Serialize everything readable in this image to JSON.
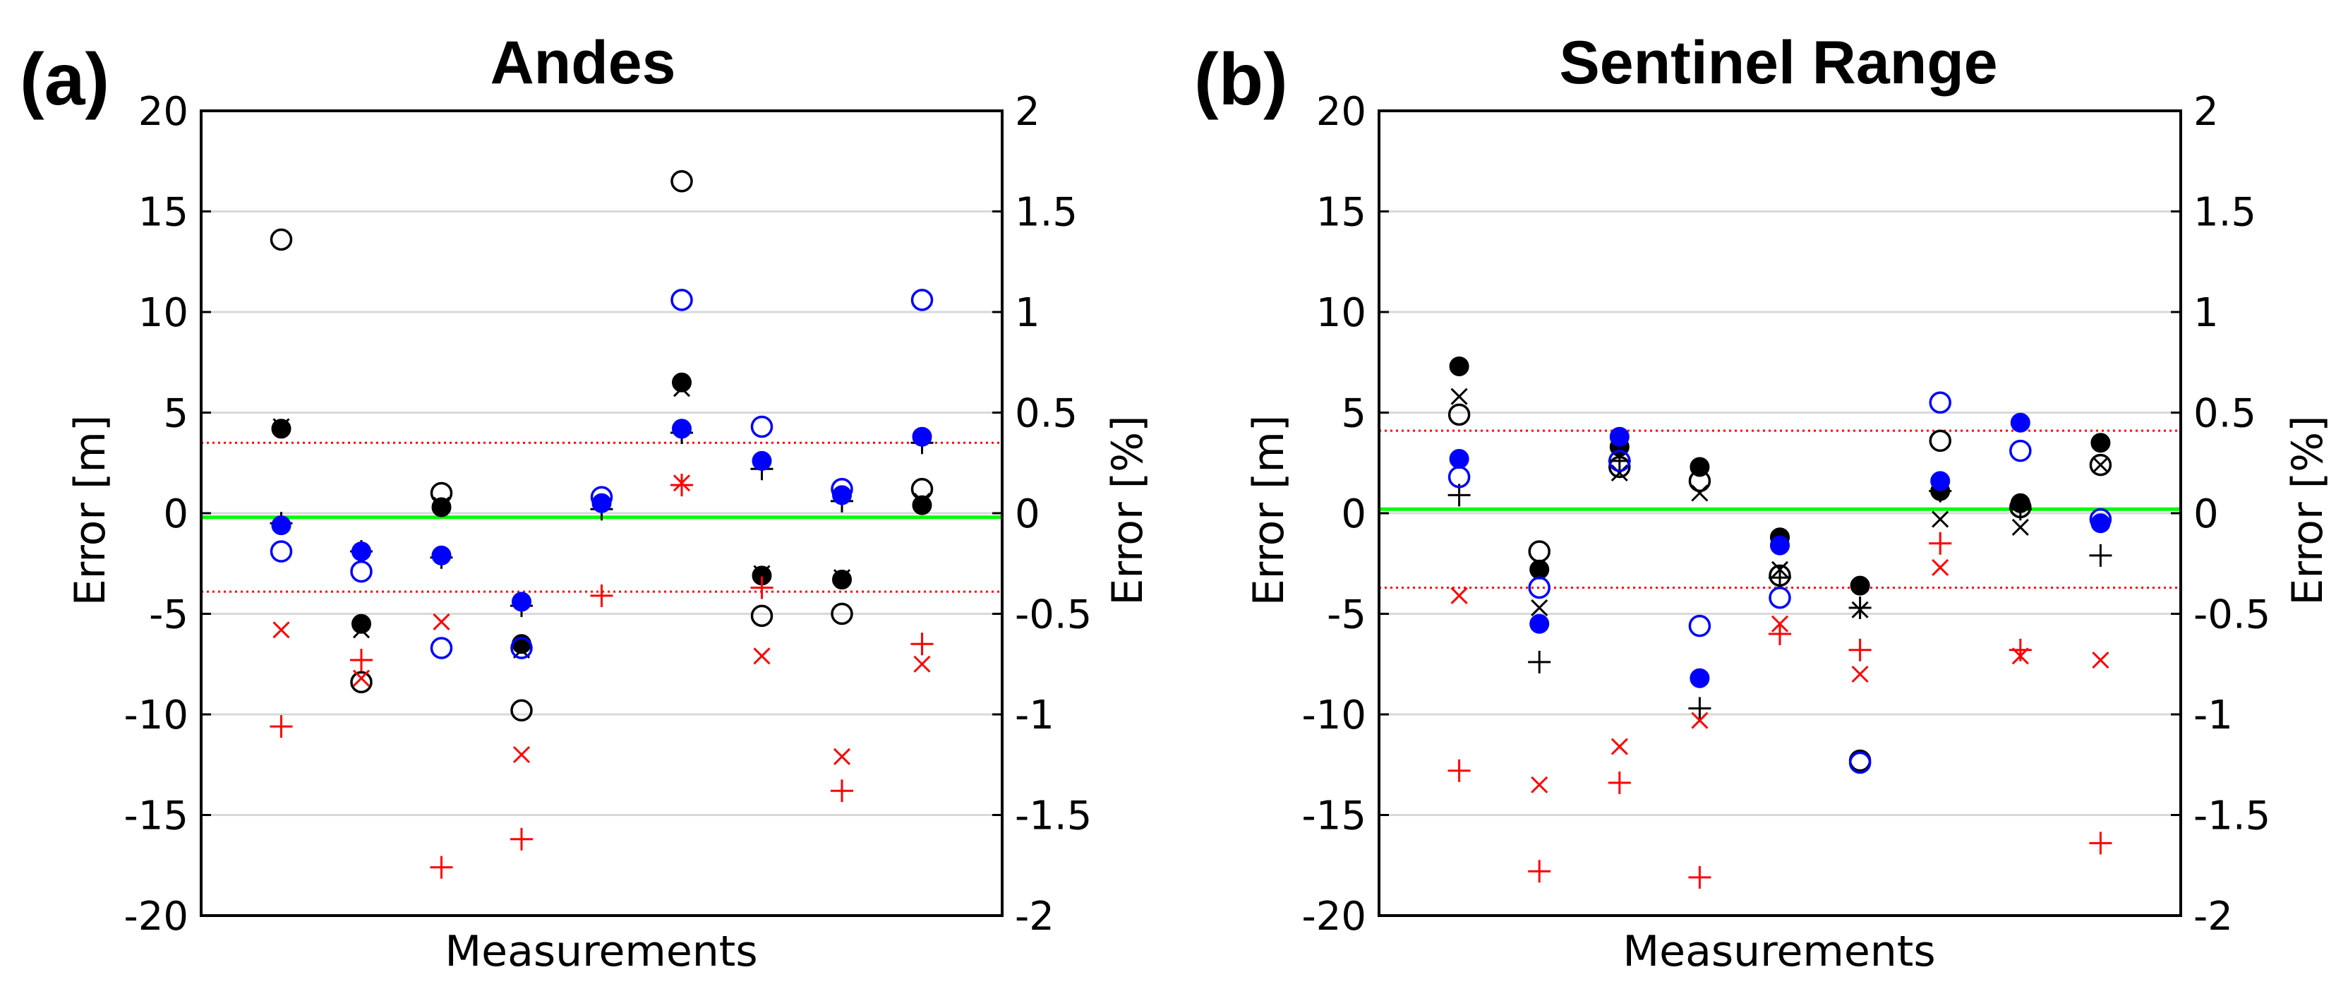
{
  "chart_data": [
    {
      "panel_label": "(a)",
      "title": "Andes",
      "type": "scatter",
      "xlabel": "Measurements",
      "ylabel": "Error [m]",
      "ylabel_right": "Error [%]",
      "ylim": [
        -20,
        20
      ],
      "ylim_right": [
        -2,
        2
      ],
      "yticks": [
        "20",
        "15",
        "10",
        "5",
        "0",
        "-5",
        "-10",
        "-15",
        "-20"
      ],
      "yticks_right": [
        "2",
        "1.5",
        "1",
        "0.5",
        "0",
        "-0.5",
        "-1",
        "-1.5",
        "-2"
      ],
      "grid": true,
      "colors": {
        "red": "#ff0000",
        "blue": "#0000ff",
        "black": "#000000",
        "green": "#00ff00"
      },
      "reference_lines": [
        {
          "name": "zero_line",
          "y": -0.2,
          "color": "green"
        },
        {
          "name": "upper_bound",
          "y": 3.5,
          "color": "red"
        },
        {
          "name": "lower_bound",
          "y": -3.9,
          "color": "red"
        }
      ],
      "series": [
        {
          "name": "black_filled_circle",
          "marker": "filled-circle",
          "color": "black",
          "points": [
            [
              1,
              4.2
            ],
            [
              2,
              -5.5
            ],
            [
              3,
              0.3
            ],
            [
              4,
              -6.5
            ],
            [
              6,
              6.5
            ],
            [
              7,
              -3.1
            ],
            [
              8,
              -3.3
            ],
            [
              9,
              0.4
            ]
          ]
        },
        {
          "name": "black_open_circle",
          "marker": "open-circle",
          "color": "black",
          "points": [
            [
              1,
              13.6
            ],
            [
              2,
              -8.4
            ],
            [
              3,
              1.0
            ],
            [
              4,
              -9.8
            ],
            [
              6,
              16.5
            ],
            [
              7,
              -5.1
            ],
            [
              8,
              -5.0
            ],
            [
              9,
              1.2
            ]
          ]
        },
        {
          "name": "black_cross",
          "marker": "x",
          "color": "black",
          "points": [
            [
              1,
              4.3
            ],
            [
              2,
              -5.8
            ],
            [
              3,
              0.4
            ],
            [
              4,
              -6.8
            ],
            [
              6,
              6.2
            ],
            [
              7,
              -3.0
            ],
            [
              8,
              -3.2
            ],
            [
              9,
              0.6
            ]
          ]
        },
        {
          "name": "black_plus",
          "marker": "plus",
          "color": "black",
          "points": [
            [
              1,
              -0.5
            ],
            [
              2,
              -1.9
            ],
            [
              3,
              -2.2
            ],
            [
              4,
              -4.6
            ],
            [
              5,
              0.2
            ],
            [
              6,
              4.0
            ],
            [
              7,
              2.2
            ],
            [
              8,
              0.6
            ],
            [
              9,
              3.5
            ]
          ]
        },
        {
          "name": "blue_filled_circle",
          "marker": "filled-circle",
          "color": "blue",
          "points": [
            [
              1,
              -0.6
            ],
            [
              2,
              -1.9
            ],
            [
              3,
              -2.1
            ],
            [
              4,
              -4.4
            ],
            [
              5,
              0.5
            ],
            [
              6,
              4.2
            ],
            [
              7,
              2.6
            ],
            [
              8,
              0.9
            ],
            [
              9,
              3.8
            ]
          ]
        },
        {
          "name": "blue_open_circle",
          "marker": "open-circle",
          "color": "blue",
          "points": [
            [
              1,
              -1.9
            ],
            [
              2,
              -2.9
            ],
            [
              3,
              -6.7
            ],
            [
              4,
              -6.7
            ],
            [
              5,
              0.8
            ],
            [
              6,
              10.6
            ],
            [
              7,
              4.3
            ],
            [
              8,
              1.2
            ],
            [
              9,
              10.6
            ]
          ]
        },
        {
          "name": "red_cross",
          "marker": "x",
          "color": "red",
          "points": [
            [
              1,
              -5.8
            ],
            [
              2,
              -8.2
            ],
            [
              3,
              -5.4
            ],
            [
              4,
              -12.0
            ],
            [
              6,
              1.5
            ],
            [
              7,
              -7.1
            ],
            [
              8,
              -12.1
            ],
            [
              9,
              -7.5
            ]
          ]
        },
        {
          "name": "red_plus",
          "marker": "plus",
          "color": "red",
          "points": [
            [
              1,
              -10.6
            ],
            [
              2,
              -7.3
            ],
            [
              3,
              -17.6
            ],
            [
              4,
              -16.2
            ],
            [
              5,
              -4.1
            ],
            [
              6,
              1.4
            ],
            [
              7,
              -3.7
            ],
            [
              8,
              -13.8
            ],
            [
              9,
              -6.5
            ]
          ]
        }
      ]
    },
    {
      "panel_label": "(b)",
      "title": "Sentinel Range",
      "type": "scatter",
      "xlabel": "Measurements",
      "ylabel": "Error [m]",
      "ylabel_right": "Error [%]",
      "ylim": [
        -20,
        20
      ],
      "ylim_right": [
        -2,
        2
      ],
      "yticks": [
        "20",
        "15",
        "10",
        "5",
        "0",
        "-5",
        "-10",
        "-15",
        "-20"
      ],
      "yticks_right": [
        "2",
        "1.5",
        "1",
        "0.5",
        "0",
        "-0.5",
        "-1",
        "-1.5",
        "-2"
      ],
      "grid": true,
      "colors": {
        "red": "#ff0000",
        "blue": "#0000ff",
        "black": "#000000",
        "green": "#00ff00"
      },
      "reference_lines": [
        {
          "name": "zero_line",
          "y": 0.2,
          "color": "green"
        },
        {
          "name": "upper_bound",
          "y": 4.1,
          "color": "red"
        },
        {
          "name": "lower_bound",
          "y": -3.7,
          "color": "red"
        }
      ],
      "series": [
        {
          "name": "black_filled_circle",
          "marker": "filled-circle",
          "color": "black",
          "points": [
            [
              1,
              7.3
            ],
            [
              2,
              -2.8
            ],
            [
              3,
              3.3
            ],
            [
              4,
              2.3
            ],
            [
              5,
              -1.2
            ],
            [
              6,
              -3.6
            ],
            [
              7,
              1.1
            ],
            [
              8,
              0.5
            ],
            [
              9,
              3.5
            ]
          ]
        },
        {
          "name": "black_open_circle",
          "marker": "open-circle",
          "color": "black",
          "points": [
            [
              1,
              4.9
            ],
            [
              2,
              -1.9
            ],
            [
              3,
              2.3
            ],
            [
              4,
              1.6
            ],
            [
              5,
              -3.1
            ],
            [
              6,
              -12.3
            ],
            [
              7,
              3.6
            ],
            [
              8,
              0.3
            ],
            [
              9,
              2.4
            ]
          ]
        },
        {
          "name": "black_cross",
          "marker": "x",
          "color": "black",
          "points": [
            [
              1,
              5.8
            ],
            [
              2,
              -4.7
            ],
            [
              3,
              2.0
            ],
            [
              4,
              1.0
            ],
            [
              5,
              -2.8
            ],
            [
              6,
              -4.8
            ],
            [
              7,
              -0.3
            ],
            [
              8,
              -0.7
            ],
            [
              9,
              2.4
            ]
          ]
        },
        {
          "name": "black_plus",
          "marker": "plus",
          "color": "black",
          "points": [
            [
              1,
              0.9
            ],
            [
              2,
              -7.4
            ],
            [
              3,
              2.6
            ],
            [
              4,
              -9.7
            ],
            [
              5,
              -3.2
            ],
            [
              6,
              -4.7
            ],
            [
              7,
              1.1
            ],
            [
              8,
              0.2
            ],
            [
              9,
              -2.1
            ]
          ]
        },
        {
          "name": "blue_filled_circle",
          "marker": "filled-circle",
          "color": "blue",
          "points": [
            [
              1,
              2.7
            ],
            [
              2,
              -5.5
            ],
            [
              3,
              3.8
            ],
            [
              4,
              -8.2
            ],
            [
              5,
              -1.6
            ],
            [
              7,
              1.6
            ],
            [
              8,
              4.5
            ],
            [
              9,
              -0.5
            ]
          ]
        },
        {
          "name": "blue_open_circle",
          "marker": "open-circle",
          "color": "blue",
          "points": [
            [
              1,
              1.8
            ],
            [
              2,
              -3.7
            ],
            [
              3,
              2.6
            ],
            [
              4,
              -5.6
            ],
            [
              5,
              -4.2
            ],
            [
              6,
              -12.4
            ],
            [
              7,
              5.5
            ],
            [
              8,
              3.1
            ],
            [
              9,
              -0.3
            ]
          ]
        },
        {
          "name": "red_cross",
          "marker": "x",
          "color": "red",
          "points": [
            [
              1,
              -4.1
            ],
            [
              2,
              -13.5
            ],
            [
              3,
              -11.6
            ],
            [
              4,
              -10.3
            ],
            [
              5,
              -5.5
            ],
            [
              6,
              -8.0
            ],
            [
              7,
              -2.7
            ],
            [
              8,
              -7.1
            ],
            [
              9,
              -7.3
            ]
          ]
        },
        {
          "name": "red_plus",
          "marker": "plus",
          "color": "red",
          "points": [
            [
              1,
              -12.8
            ],
            [
              2,
              -17.8
            ],
            [
              3,
              -13.4
            ],
            [
              4,
              -18.1
            ],
            [
              5,
              -6.0
            ],
            [
              6,
              -6.8
            ],
            [
              7,
              -1.5
            ],
            [
              8,
              -6.8
            ],
            [
              9,
              -16.4
            ]
          ]
        }
      ]
    }
  ]
}
